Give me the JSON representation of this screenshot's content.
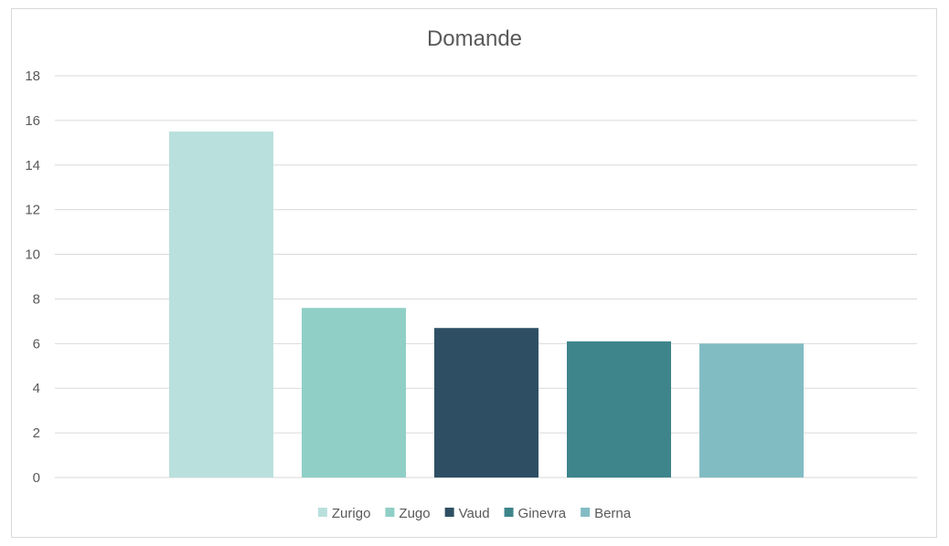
{
  "chart_data": {
    "type": "bar",
    "title": "Domande",
    "xlabel": "",
    "ylabel": "",
    "ylim": [
      0,
      18
    ],
    "yticks": [
      0,
      2,
      4,
      6,
      8,
      10,
      12,
      14,
      16,
      18
    ],
    "grid": true,
    "legend_position": "bottom",
    "series": [
      {
        "name": "Zurigo",
        "values": [
          15.5
        ],
        "color": "#b9e0dd"
      },
      {
        "name": "Zugo",
        "values": [
          7.6
        ],
        "color": "#90cfc6"
      },
      {
        "name": "Vaud",
        "values": [
          6.7
        ],
        "color": "#2e4f63"
      },
      {
        "name": "Ginevra",
        "values": [
          6.1
        ],
        "color": "#3e848b"
      },
      {
        "name": "Berna",
        "values": [
          6.0
        ],
        "color": "#82bcc3"
      }
    ]
  }
}
